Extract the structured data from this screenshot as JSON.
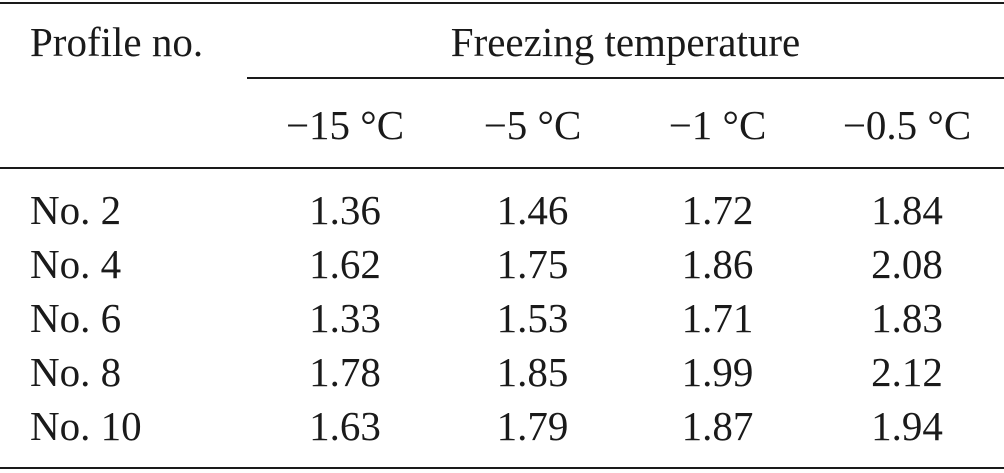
{
  "table": {
    "header": {
      "profile_label": "Profile no.",
      "group_label": "Freezing temperature",
      "temperatures": [
        "−15 °C",
        "−5 °C",
        "−1 °C",
        "−0.5 °C"
      ]
    },
    "rows": [
      {
        "label": "No. 2",
        "values": [
          "1.36",
          "1.46",
          "1.72",
          "1.84"
        ]
      },
      {
        "label": "No. 4",
        "values": [
          "1.62",
          "1.75",
          "1.86",
          "2.08"
        ]
      },
      {
        "label": "No. 6",
        "values": [
          "1.33",
          "1.53",
          "1.71",
          "1.83"
        ]
      },
      {
        "label": "No. 8",
        "values": [
          "1.78",
          "1.85",
          "1.99",
          "2.12"
        ]
      },
      {
        "label": "No. 10",
        "values": [
          "1.63",
          "1.79",
          "1.87",
          "1.94"
        ]
      }
    ]
  }
}
